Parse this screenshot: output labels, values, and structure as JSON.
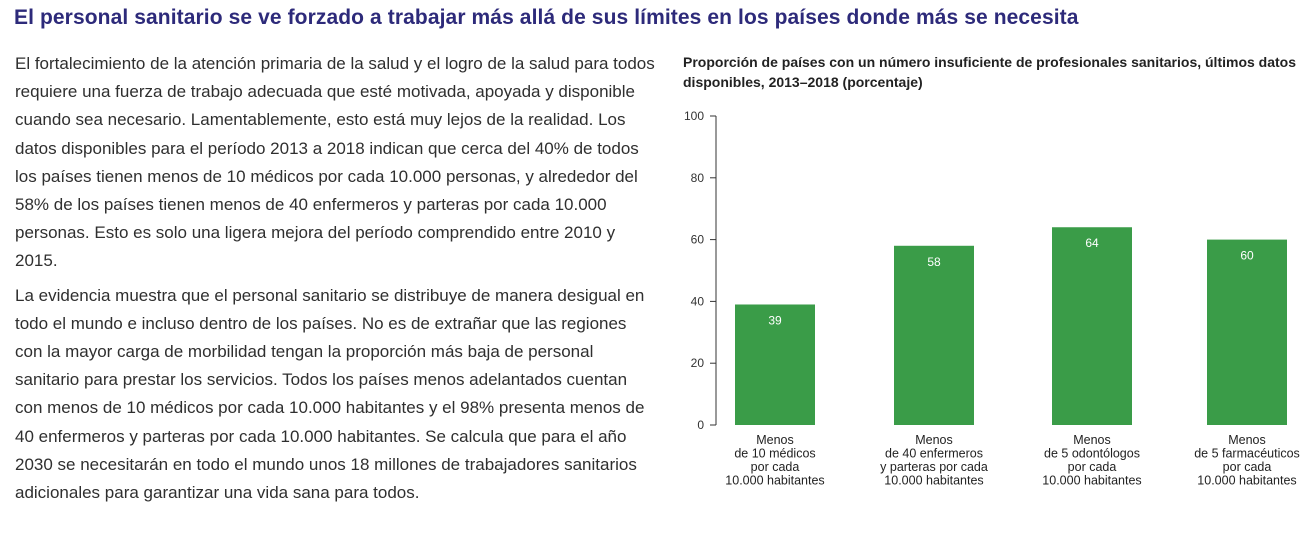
{
  "headline": "El personal sanitario se ve forzado a trabajar más allá de sus límites en los países donde más se necesita",
  "paragraphs": [
    "El fortalecimiento de la atención primaria de la salud y el logro de la salud para todos requiere una fuerza de trabajo adecuada que esté motivada, apoyada y disponible cuando sea necesario. Lamentablemente, esto está muy lejos de la realidad. Los datos disponibles para el período 2013 a 2018 indican que cerca del 40% de todos los países tienen menos de 10 médicos por cada 10.000 personas, y alrededor del 58% de los países tienen menos de 40 enfermeros y parteras por cada 10.000 personas. Esto es solo una ligera mejora del período comprendido entre 2010 y 2015.",
    "La evidencia muestra que el personal sanitario se distribuye de manera desigual en todo el mundo e incluso dentro de los países. No es de extrañar que las regiones con la mayor carga de morbilidad tengan la proporción más baja de personal sanitario para prestar los servicios. Todos los países menos adelantados cuentan con menos de 10 médicos por cada 10.000 habitantes y el 98% presenta menos de 40 enfermeros y parteras por cada 10.000 habitantes. Se calcula que para el año 2030 se necesitarán en todo el mundo unos 18 millones de trabajadores sanitarios adicionales para garantizar una vida sana para todos."
  ],
  "chart_data": {
    "type": "bar",
    "title": "Proporción de países con un número insuficiente de profesionales sanitarios, últimos datos disponibles, 2013–2018 (porcentaje)",
    "categories": [
      [
        "Menos",
        "de 10 médicos",
        "por cada",
        "10.000 habitantes"
      ],
      [
        "Menos",
        "de 40 enfermeros",
        "y parteras por cada",
        "10.000 habitantes"
      ],
      [
        "Menos",
        "de 5 odontólogos",
        "por cada",
        "10.000 habitantes"
      ],
      [
        "Menos",
        "de 5 farmacéuticos",
        "por cada",
        "10.000 habitantes"
      ]
    ],
    "values": [
      39,
      58,
      64,
      60
    ],
    "ylim": [
      0,
      100
    ],
    "yticks": [
      0,
      20,
      40,
      60,
      80,
      100
    ],
    "grid": false,
    "bar_color": "#3a9c48",
    "label_color": "#ffffff"
  }
}
